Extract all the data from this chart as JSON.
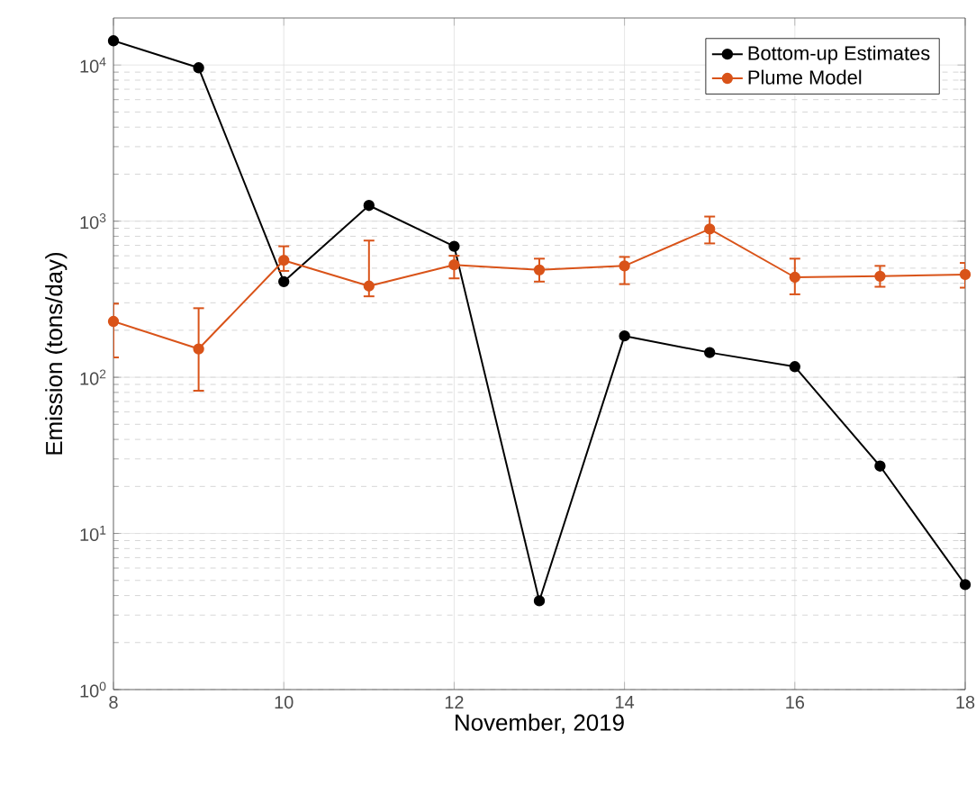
{
  "chart_data": {
    "type": "line",
    "xlabel": "November, 2019",
    "ylabel": "Emission (tons/day)",
    "x": [
      8,
      9,
      10,
      11,
      12,
      13,
      14,
      15,
      16,
      17,
      18
    ],
    "series": [
      {
        "name": "Bottom-up Estimates",
        "color": "#000000",
        "values": [
          14300,
          9600,
          410,
          1260,
          690,
          3.7,
          184,
          144,
          117,
          27,
          4.7
        ]
      },
      {
        "name": "Plume Model",
        "color": "#d95319",
        "values": [
          228,
          152,
          561,
          384,
          525,
          487,
          517,
          890,
          437,
          444,
          455
        ],
        "errors": [
          [
            134,
            296
          ],
          [
            82,
            277
          ],
          [
            480,
            690
          ],
          [
            330,
            751
          ],
          [
            430,
            600
          ],
          [
            410,
            575
          ],
          [
            395,
            590
          ],
          [
            720,
            1070
          ],
          [
            340,
            575
          ],
          [
            380,
            517
          ],
          [
            375,
            540
          ]
        ]
      }
    ],
    "log": "y",
    "xlim": [
      8,
      18
    ],
    "ylim": [
      1,
      20000
    ],
    "xticks": [
      8,
      10,
      12,
      14,
      16,
      18
    ],
    "yticks": [
      {
        "value": 1,
        "label": "10$^{0}$"
      },
      {
        "value": 10,
        "label": "10$^{1}$"
      },
      {
        "value": 100,
        "label": "10$^{2}$"
      },
      {
        "value": 1000,
        "label": "10$^{3}$"
      },
      {
        "value": 10000,
        "label": "10$^{4}$"
      }
    ],
    "grid": true,
    "legend": "top right",
    "marker": "circle",
    "line_style": "solid"
  }
}
